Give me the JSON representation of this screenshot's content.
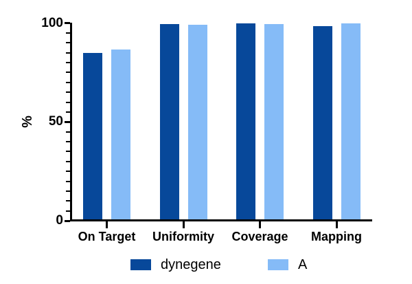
{
  "chart_data": {
    "type": "bar",
    "title": "",
    "categories": [
      "On Target",
      "Uniformity",
      "Coverage",
      "Mapping"
    ],
    "series": [
      {
        "name": "dynegene",
        "color": "#07489a",
        "values": [
          85,
          99.5,
          100,
          98.5
        ]
      },
      {
        "name": "A",
        "color": "#85bbf7",
        "values": [
          86.5,
          99,
          99.5,
          99.9
        ]
      }
    ],
    "xlabel": "",
    "ylabel": "%",
    "ylim": [
      0,
      100
    ],
    "yticks": [
      0,
      50,
      100
    ],
    "ytick_labels": [
      "0",
      "50",
      "100"
    ],
    "minor_tick_step": 5,
    "grid": false,
    "legend_position": "bottom",
    "axis_color": "#000000",
    "background_color": "#ffffff"
  },
  "legend": {
    "items": [
      {
        "label": "dynegene",
        "color": "#07489a"
      },
      {
        "label": "A",
        "color": "#85bbf7"
      }
    ]
  }
}
